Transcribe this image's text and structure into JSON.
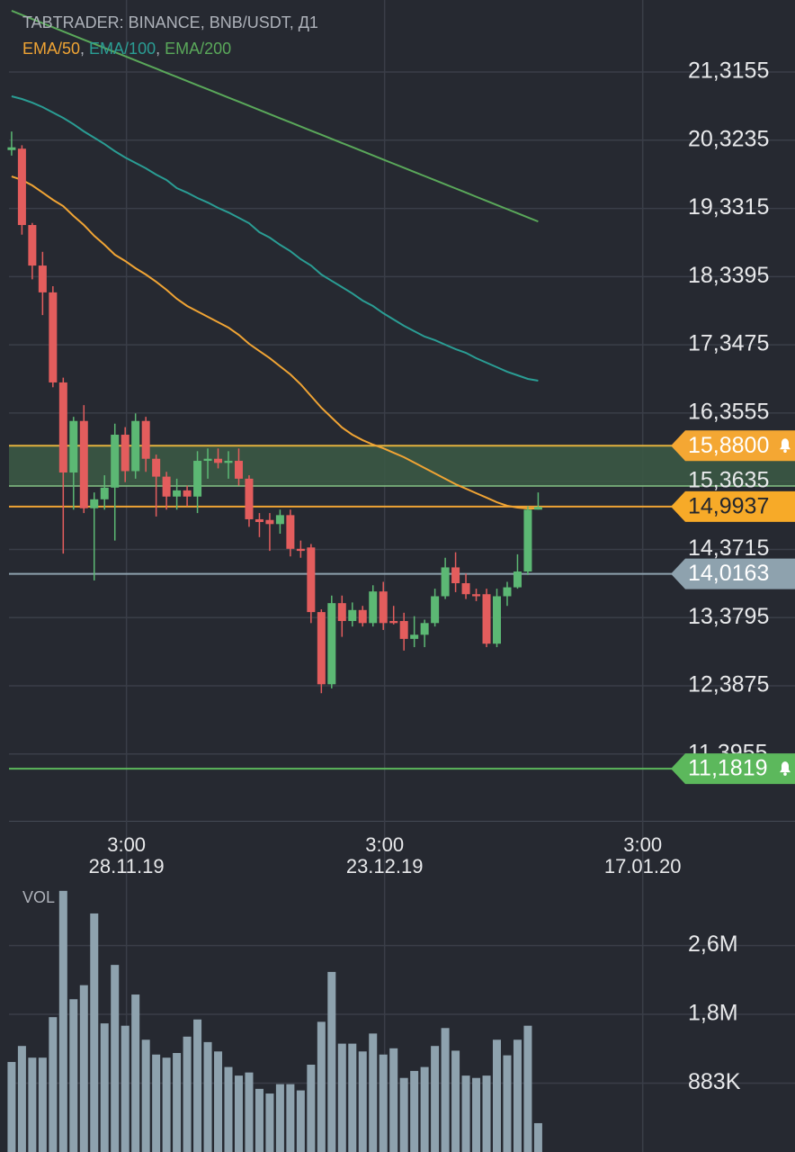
{
  "chart_data": [
    {
      "type": "candlestick",
      "title": "TABTRADER: BINANCE, BNB/USDT, Д1",
      "legend_separator": ", ",
      "x": [
        "2019-11-17",
        "2019-11-18",
        "2019-11-19",
        "2019-11-20",
        "2019-11-21",
        "2019-11-22",
        "2019-11-23",
        "2019-11-24",
        "2019-11-25",
        "2019-11-26",
        "2019-11-27",
        "2019-11-28",
        "2019-11-29",
        "2019-11-30",
        "2019-12-01",
        "2019-12-02",
        "2019-12-03",
        "2019-12-04",
        "2019-12-05",
        "2019-12-06",
        "2019-12-07",
        "2019-12-08",
        "2019-12-09",
        "2019-12-10",
        "2019-12-11",
        "2019-12-12",
        "2019-12-13",
        "2019-12-14",
        "2019-12-15",
        "2019-12-16",
        "2019-12-17",
        "2019-12-18",
        "2019-12-19",
        "2019-12-20",
        "2019-12-21",
        "2019-12-22",
        "2019-12-23",
        "2019-12-24",
        "2019-12-25",
        "2019-12-26",
        "2019-12-27",
        "2019-12-28",
        "2019-12-29",
        "2019-12-30",
        "2019-12-31",
        "2020-01-01",
        "2020-01-02",
        "2020-01-03",
        "2020-01-04",
        "2020-01-05",
        "2020-01-06",
        "2020-01-07"
      ],
      "open": [
        20.18,
        20.2,
        19.09,
        18.5,
        18.11,
        16.8,
        15.49,
        16.24,
        14.97,
        15.1,
        15.27,
        16.04,
        15.51,
        16.24,
        15.69,
        15.43,
        15.14,
        15.23,
        15.14,
        15.66,
        15.69,
        15.63,
        15.66,
        15.4,
        14.81,
        14.8,
        14.74,
        14.87,
        14.38,
        14.4,
        13.46,
        12.41,
        13.59,
        13.33,
        13.49,
        13.3,
        13.76,
        13.33,
        13.33,
        13.07,
        13.13,
        13.3,
        13.69,
        14.11,
        13.88,
        13.72,
        13.72,
        13.0,
        13.69,
        13.82,
        14.05,
        14.95
      ],
      "high": [
        20.45,
        20.25,
        19.12,
        18.7,
        18.2,
        16.87,
        16.3,
        16.47,
        15.2,
        15.45,
        16.2,
        16.15,
        16.35,
        16.3,
        15.75,
        15.5,
        15.4,
        15.3,
        15.8,
        15.84,
        15.84,
        15.8,
        15.84,
        15.45,
        14.9,
        14.9,
        14.95,
        14.95,
        14.5,
        14.45,
        13.5,
        13.7,
        13.7,
        13.6,
        13.55,
        13.85,
        13.9,
        13.55,
        13.45,
        13.4,
        13.35,
        13.8,
        14.25,
        14.33,
        14.02,
        13.8,
        13.8,
        13.8,
        13.9,
        14.3,
        15.0,
        15.2
      ],
      "low": [
        20.1,
        18.95,
        18.3,
        17.78,
        16.73,
        14.31,
        14.95,
        14.9,
        13.92,
        14.95,
        14.5,
        15.35,
        15.4,
        15.5,
        14.85,
        14.95,
        14.95,
        15.0,
        14.9,
        15.4,
        15.55,
        15.4,
        15.3,
        14.7,
        14.55,
        14.35,
        14.6,
        14.27,
        14.25,
        13.3,
        12.28,
        12.35,
        13.1,
        13.25,
        13.25,
        13.25,
        13.2,
        13.28,
        12.9,
        12.95,
        12.95,
        13.25,
        13.65,
        13.75,
        13.65,
        13.62,
        12.95,
        12.95,
        13.55,
        13.8,
        14.0,
        14.95
      ],
      "close": [
        20.22,
        19.09,
        18.5,
        18.11,
        16.8,
        15.49,
        16.24,
        14.97,
        15.1,
        15.27,
        16.04,
        15.51,
        16.24,
        15.69,
        15.43,
        15.14,
        15.23,
        15.14,
        15.66,
        15.69,
        15.63,
        15.66,
        15.4,
        14.81,
        14.77,
        14.74,
        14.87,
        14.38,
        14.35,
        13.46,
        12.41,
        13.59,
        13.33,
        13.49,
        13.3,
        13.76,
        13.3,
        13.3,
        13.07,
        13.13,
        13.3,
        13.69,
        14.11,
        13.88,
        13.72,
        13.69,
        13.0,
        13.69,
        13.82,
        14.05,
        14.95,
        14.99
      ],
      "up_color": "#5cb874",
      "down_color": "#e35d5d",
      "series": [
        {
          "name": "EMA/50",
          "color": "#f0a434",
          "values": [
            19.797,
            19.745,
            19.666,
            19.562,
            19.457,
            19.365,
            19.221,
            19.09,
            18.933,
            18.802,
            18.658,
            18.567,
            18.462,
            18.37,
            18.265,
            18.148,
            18.017,
            17.912,
            17.833,
            17.755,
            17.676,
            17.598,
            17.493,
            17.362,
            17.257,
            17.153,
            17.035,
            16.917,
            16.773,
            16.603,
            16.433,
            16.289,
            16.145,
            16.04,
            15.961,
            15.896,
            15.843,
            15.778,
            15.713,
            15.634,
            15.556,
            15.477,
            15.399,
            15.32,
            15.255,
            15.189,
            15.124,
            15.058,
            15.006,
            14.98,
            14.967,
            14.967
          ]
        },
        {
          "name": "EMA/100",
          "color": "#2a9d94",
          "values": [
            20.962,
            20.923,
            20.87,
            20.805,
            20.726,
            20.648,
            20.556,
            20.452,
            20.36,
            20.268,
            20.164,
            20.072,
            19.993,
            19.915,
            19.823,
            19.745,
            19.627,
            19.561,
            19.483,
            19.417,
            19.339,
            19.273,
            19.195,
            19.116,
            18.985,
            18.907,
            18.802,
            18.71,
            18.593,
            18.501,
            18.37,
            18.278,
            18.187,
            18.095,
            17.991,
            17.912,
            17.807,
            17.716,
            17.624,
            17.545,
            17.467,
            17.415,
            17.349,
            17.284,
            17.231,
            17.153,
            17.087,
            17.022,
            16.956,
            16.904,
            16.852,
            16.825
          ]
        },
        {
          "name": "EMA/200",
          "color": "#5aa85a",
          "values": [
            22.206,
            22.146,
            22.086,
            22.026,
            21.966,
            21.906,
            21.845,
            21.785,
            21.725,
            21.665,
            21.605,
            21.545,
            21.485,
            21.425,
            21.365,
            21.304,
            21.244,
            21.184,
            21.124,
            21.064,
            21.004,
            20.944,
            20.884,
            20.824,
            20.764,
            20.703,
            20.643,
            20.583,
            20.523,
            20.463,
            20.403,
            20.343,
            20.283,
            20.223,
            20.163,
            20.102,
            20.042,
            19.982,
            19.922,
            19.862,
            19.802,
            19.742,
            19.682,
            19.622,
            19.562,
            19.501,
            19.441,
            19.381,
            19.321,
            19.261,
            19.201,
            19.141
          ]
        }
      ],
      "xlim": [
        "2019-11-15T21:00",
        "2020-01-31T21:00"
      ],
      "xticks": [
        {
          "value": "2019-11-28T03:00",
          "label": "28.11.19",
          "time_label": "3:00"
        },
        {
          "value": "2019-12-23T03:00",
          "label": "23.12.19",
          "time_label": "3:00"
        },
        {
          "value": "2020-01-17T03:00",
          "label": "17.01.20",
          "time_label": "3:00"
        }
      ],
      "ylim": [
        10.424,
        22.363
      ],
      "yticks": [
        {
          "value": 21.3155,
          "label": "21,3155"
        },
        {
          "value": 20.3235,
          "label": "20,3235"
        },
        {
          "value": 19.3315,
          "label": "19,3315"
        },
        {
          "value": 18.3395,
          "label": "18,3395"
        },
        {
          "value": 17.3475,
          "label": "17,3475"
        },
        {
          "value": 16.3555,
          "label": "16,3555"
        },
        {
          "value": 15.3635,
          "label": "15,3635"
        },
        {
          "value": 14.3715,
          "label": "14,3715"
        },
        {
          "value": 13.3795,
          "label": "13,3795"
        },
        {
          "value": 12.3875,
          "label": "12,3875"
        },
        {
          "value": 11.3955,
          "label": "11,3955"
        }
      ],
      "grid": true,
      "zone": {
        "range": [
          15.294,
          15.88
        ],
        "color": "#3b5845",
        "edge_color": "#86c286"
      },
      "levels": [
        {
          "value": 15.88,
          "label": "15,8800",
          "color": "#e2b23e",
          "badge_color": "#f4a733",
          "text_color": "#ffffff",
          "alert": true
        },
        {
          "value": 14.9937,
          "label": "14,9937",
          "color": "#f0a434",
          "badge_color": "#f7aa28",
          "text_color": "#23262d",
          "alert": false
        },
        {
          "value": 14.0163,
          "label": "14,0163",
          "color": "#8ea2ae",
          "badge_color": "#8ea2ae",
          "text_color": "#ffffff",
          "alert": false
        },
        {
          "value": 11.1819,
          "label": "11,1819",
          "color": "#5cb85c",
          "badge_color": "#5cb85c",
          "text_color": "#ffffff",
          "alert": true
        }
      ]
    },
    {
      "type": "bar",
      "title": "VOL",
      "color": "#8ea2ae",
      "x": [
        "2019-11-17",
        "2019-11-18",
        "2019-11-19",
        "2019-11-20",
        "2019-11-21",
        "2019-11-22",
        "2019-11-23",
        "2019-11-24",
        "2019-11-25",
        "2019-11-26",
        "2019-11-27",
        "2019-11-28",
        "2019-11-29",
        "2019-11-30",
        "2019-12-01",
        "2019-12-02",
        "2019-12-03",
        "2019-12-04",
        "2019-12-05",
        "2019-12-06",
        "2019-12-07",
        "2019-12-08",
        "2019-12-09",
        "2019-12-10",
        "2019-12-11",
        "2019-12-12",
        "2019-12-13",
        "2019-12-14",
        "2019-12-15",
        "2019-12-16",
        "2019-12-17",
        "2019-12-18",
        "2019-12-19",
        "2019-12-20",
        "2019-12-21",
        "2019-12-22",
        "2019-12-23",
        "2019-12-24",
        "2019-12-25",
        "2019-12-26",
        "2019-12-27",
        "2019-12-28",
        "2019-12-29",
        "2019-12-30",
        "2019-12-31",
        "2020-01-01",
        "2020-01-02",
        "2020-01-03",
        "2020-01-04",
        "2020-01-05",
        "2020-01-06",
        "2020-01-07"
      ],
      "values": [
        1155000,
        1360000,
        1210000,
        1210000,
        1730000,
        3350000,
        1960000,
        2140000,
        3060000,
        1650000,
        2400000,
        1620000,
        2020000,
        1440000,
        1250000,
        1210000,
        1270000,
        1480000,
        1700000,
        1410000,
        1290000,
        1090000,
        980000,
        1020000,
        810000,
        750000,
        870000,
        870000,
        790000,
        1120000,
        1670000,
        2310000,
        1390000,
        1390000,
        1290000,
        1520000,
        1250000,
        1330000,
        950000,
        1040000,
        1090000,
        1360000,
        1590000,
        1300000,
        980000,
        950000,
        980000,
        1440000,
        1240000,
        1440000,
        1620000,
        370000
      ],
      "xlim": [
        "2019-11-15T21:00",
        "2020-01-31T21:00"
      ],
      "ylim": [
        0,
        3406000
      ],
      "yticks": [
        {
          "value": 883000,
          "label": "883K"
        },
        {
          "value": 1766000,
          "label": "1,8M"
        },
        {
          "value": 2649000,
          "label": "2,6M"
        }
      ],
      "grid": true
    }
  ]
}
